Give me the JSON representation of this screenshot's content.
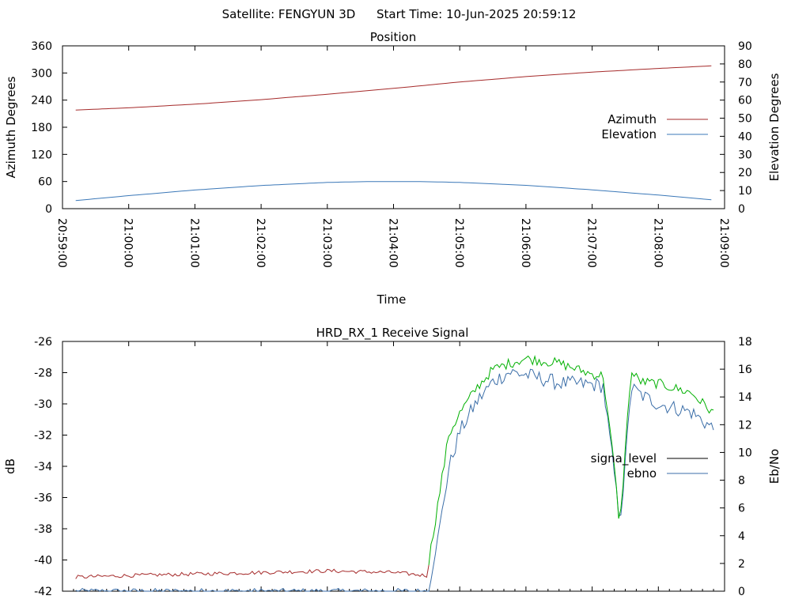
{
  "header": {
    "satellite_label": "Satellite: FENGYUN 3D",
    "start_time_label": "Start Time: 10-Jun-2025 20:59:12"
  },
  "colors": {
    "azimuth": "#a52a2a",
    "elevation": "#3b78b8",
    "signal_level": "#00b000",
    "ebno": "#3b6ea8",
    "signal_baseline": "#a52a2a",
    "legend_signal_level": "#000000"
  },
  "chart_data": [
    {
      "type": "line",
      "title": "Position",
      "xlabel": "Time",
      "ylabel": "Azimuth Degrees",
      "y2label": "Elevation Degrees",
      "xlim": [
        "20:59:00",
        "21:09:00"
      ],
      "ylim": [
        0,
        360
      ],
      "y2lim": [
        0,
        90
      ],
      "yticks": [
        0,
        60,
        120,
        180,
        240,
        300,
        360
      ],
      "y2ticks": [
        0,
        10,
        20,
        30,
        40,
        50,
        60,
        70,
        80,
        90
      ],
      "xticks": [
        "20:59:00",
        "21:00:00",
        "21:01:00",
        "21:02:00",
        "21:03:00",
        "21:04:00",
        "21:05:00",
        "21:06:00",
        "21:07:00",
        "21:08:00",
        "21:09:00"
      ],
      "legend_position": "right",
      "series": [
        {
          "name": "Azimuth",
          "axis": "y",
          "x": [
            "20:59:12",
            "21:00:00",
            "21:01:00",
            "21:02:00",
            "21:03:00",
            "21:04:00",
            "21:05:00",
            "21:06:00",
            "21:07:00",
            "21:08:00",
            "21:08:50"
          ],
          "values": [
            218,
            223,
            231,
            241,
            253,
            266,
            280,
            292,
            302,
            310,
            316
          ]
        },
        {
          "name": "Elevation",
          "axis": "y2",
          "x": [
            "20:59:12",
            "21:00:00",
            "21:01:00",
            "21:02:00",
            "21:03:00",
            "21:03:30",
            "21:04:00",
            "21:04:30",
            "21:05:00",
            "21:06:00",
            "21:07:00",
            "21:08:00",
            "21:08:50"
          ],
          "values": [
            4.5,
            7.2,
            10.3,
            12.8,
            14.5,
            14.9,
            15.0,
            14.9,
            14.5,
            12.9,
            10.4,
            7.5,
            4.8
          ]
        }
      ]
    },
    {
      "type": "line",
      "title": "HRD_RX_1 Receive Signal",
      "ylabel": "dB",
      "y2label": "Eb/No",
      "xlim": [
        "20:59:00",
        "21:09:00"
      ],
      "ylim": [
        -42,
        -26
      ],
      "y2lim": [
        0,
        18
      ],
      "yticks": [
        -42,
        -40,
        -38,
        -36,
        -34,
        -32,
        -30,
        -28,
        -26
      ],
      "y2ticks": [
        0,
        2,
        4,
        6,
        8,
        10,
        12,
        14,
        16,
        18
      ],
      "legend_position": "right",
      "series": [
        {
          "name": "signa_level",
          "axis": "y",
          "x": [
            "20:59:12",
            "21:00:00",
            "21:01:00",
            "21:02:00",
            "21:03:00",
            "21:04:00",
            "21:04:30",
            "21:04:40",
            "21:04:50",
            "21:05:00",
            "21:05:15",
            "21:05:30",
            "21:05:45",
            "21:06:00",
            "21:06:30",
            "21:07:00",
            "21:07:10",
            "21:07:20",
            "21:07:25",
            "21:07:30",
            "21:07:35",
            "21:07:45",
            "21:08:00",
            "21:08:30",
            "21:08:50"
          ],
          "values": [
            -41.1,
            -41.0,
            -40.9,
            -40.8,
            -40.7,
            -40.8,
            -41.0,
            -36.5,
            -32.0,
            -30.6,
            -29.0,
            -27.8,
            -27.4,
            -27.1,
            -27.4,
            -28.1,
            -28.2,
            -34.0,
            -37.9,
            -33.0,
            -28.0,
            -28.6,
            -28.7,
            -29.3,
            -30.6
          ]
        },
        {
          "name": "ebno",
          "axis": "y2",
          "x": [
            "20:59:12",
            "21:04:32",
            "21:04:40",
            "21:04:50",
            "21:05:00",
            "21:05:15",
            "21:05:30",
            "21:05:45",
            "21:06:00",
            "21:06:30",
            "21:07:00",
            "21:07:10",
            "21:07:20",
            "21:07:25",
            "21:07:30",
            "21:07:35",
            "21:07:45",
            "21:08:00",
            "21:08:30",
            "21:08:50"
          ],
          "values": [
            0,
            0,
            3.8,
            8.8,
            11.5,
            13.6,
            15.1,
            15.8,
            15.6,
            15.0,
            14.9,
            14.8,
            8.5,
            4.8,
            9.0,
            14.7,
            14.1,
            13.5,
            12.9,
            11.7
          ]
        }
      ]
    }
  ]
}
